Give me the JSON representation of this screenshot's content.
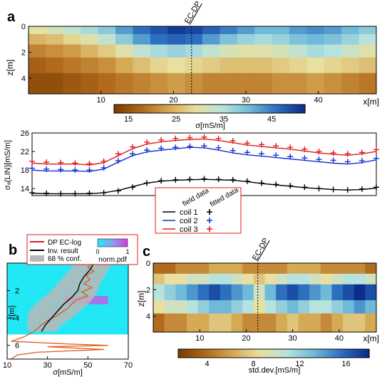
{
  "panels": {
    "a": {
      "label": "a",
      "marker": "EC-DP",
      "xlabel": "x[m]",
      "ylabel": "z[m]",
      "xticks": [
        10,
        20,
        30,
        40
      ],
      "yticks": [
        0,
        2,
        4
      ],
      "colorbar": {
        "ticks": [
          15,
          25,
          35,
          45
        ],
        "label": "σ[mS/m]"
      }
    },
    "b": {
      "label": "b",
      "legend": {
        "dp": "DP EC-log",
        "inv": "Inv. result",
        "conf": "68 % conf.",
        "pdf_label": "norm.pdf",
        "pdf_min": "0",
        "pdf_max": "1"
      },
      "xticks": [
        10,
        30,
        50,
        70
      ],
      "yticks": [
        2,
        4,
        6
      ],
      "xlabel": "σ[mS/m]",
      "ylabel": "z[m]"
    },
    "c": {
      "label": "c",
      "marker": "EC-DP",
      "xlabel": "x[m]",
      "ylabel": "z[m]",
      "xticks": [
        10,
        20,
        30,
        40
      ],
      "yticks": [
        0,
        2,
        4
      ],
      "colorbar": {
        "ticks": [
          4,
          8,
          12,
          16
        ],
        "label": "std.dev.[mS/m]"
      }
    }
  },
  "colors": {
    "cmap": [
      "#7a3f00",
      "#b26a1c",
      "#d6a955",
      "#e8e0a0",
      "#b7e2dd",
      "#6fbad8",
      "#2d6fbf",
      "#0d2d8a"
    ],
    "coil1": "#000000",
    "coil2": "#1530d0",
    "coil3": "#e01b1b",
    "dp_log": "#e05a1a",
    "inv": "#000000",
    "conf": "#b8b8b8",
    "pdf_bg": "#22e8f5",
    "pdf_mid": "#c855e8"
  },
  "chart_data": [
    {
      "type": "heatmap",
      "title": "a",
      "xlim": [
        0,
        48
      ],
      "ylim": [
        5.2,
        0
      ],
      "marker_x": 22.5,
      "value_range": [
        15,
        50
      ],
      "layers": [
        {
          "depth": [
            0,
            0.6
          ],
          "values": [
            30,
            32,
            34,
            36,
            38,
            42,
            45,
            47,
            49,
            48,
            46,
            44,
            42,
            40,
            40,
            42,
            43,
            42,
            40,
            38
          ]
        },
        {
          "depth": [
            0.6,
            1.4
          ],
          "values": [
            26,
            27,
            29,
            31,
            34,
            38,
            42,
            45,
            46,
            45,
            42,
            39,
            37,
            36,
            37,
            39,
            40,
            39,
            37,
            35
          ]
        },
        {
          "depth": [
            1.4,
            2.4
          ],
          "values": [
            22,
            23,
            24,
            26,
            28,
            31,
            34,
            36,
            37,
            36,
            34,
            32,
            31,
            31,
            32,
            34,
            36,
            35,
            33,
            31
          ]
        },
        {
          "depth": [
            2.4,
            3.6
          ],
          "values": [
            19,
            20,
            21,
            22,
            23,
            25,
            27,
            29,
            30,
            29,
            28,
            27,
            27,
            27,
            28,
            29,
            30,
            29,
            28,
            27
          ]
        },
        {
          "depth": [
            3.6,
            5.2
          ],
          "values": [
            17,
            17,
            18,
            19,
            20,
            21,
            22,
            23,
            24,
            23,
            22,
            22,
            22,
            22,
            23,
            23,
            24,
            23,
            22,
            21
          ]
        }
      ]
    },
    {
      "type": "line",
      "xlim": [
        0,
        48
      ],
      "ylim": [
        12.5,
        26
      ],
      "ylabel": "σₐ(LIN)[mS/m]",
      "yticks": [
        14,
        18,
        22,
        26
      ],
      "legend_headers": [
        "field data",
        "fitted data"
      ],
      "x": [
        0,
        2,
        4,
        6,
        8,
        10,
        12,
        14,
        16,
        18,
        20,
        22,
        24,
        26,
        28,
        30,
        32,
        34,
        36,
        38,
        40,
        42,
        44,
        46,
        48
      ],
      "series": [
        {
          "name": "coil 1",
          "field": [
            13.1,
            13.0,
            12.9,
            12.9,
            13.0,
            13.1,
            13.5,
            14.3,
            15.2,
            15.7,
            15.9,
            16.0,
            16.1,
            16.0,
            15.9,
            15.6,
            15.2,
            14.9,
            14.6,
            14.3,
            14.0,
            13.8,
            13.7,
            13.9,
            14.3
          ],
          "fitted": [
            13.0,
            12.9,
            12.9,
            12.9,
            12.9,
            13.1,
            13.6,
            14.4,
            15.2,
            15.6,
            15.8,
            15.9,
            16.0,
            15.9,
            15.8,
            15.5,
            15.1,
            14.8,
            14.5,
            14.2,
            14.0,
            13.8,
            13.7,
            13.8,
            14.1
          ]
        },
        {
          "name": "coil 2",
          "field": [
            18.4,
            18.2,
            18.1,
            18.0,
            18.0,
            18.5,
            20.0,
            21.5,
            22.3,
            22.7,
            22.9,
            23.1,
            23.2,
            22.8,
            22.2,
            21.8,
            21.5,
            21.2,
            20.9,
            20.6,
            20.3,
            20.1,
            19.8,
            20.0,
            20.5
          ],
          "fitted": [
            18.0,
            17.8,
            17.8,
            17.8,
            17.7,
            18.2,
            19.7,
            21.1,
            21.9,
            22.3,
            22.6,
            22.9,
            22.8,
            22.3,
            21.7,
            21.3,
            21.0,
            20.7,
            20.4,
            20.1,
            19.8,
            19.5,
            19.3,
            19.6,
            20.2
          ]
        },
        {
          "name": "coil 3",
          "field": [
            19.9,
            19.7,
            19.6,
            19.5,
            19.4,
            19.9,
            21.5,
            23.0,
            24.0,
            24.5,
            24.8,
            25.0,
            25.1,
            24.8,
            24.3,
            23.8,
            23.5,
            23.2,
            22.9,
            22.5,
            22.0,
            21.7,
            21.5,
            21.8,
            22.4
          ],
          "fitted": [
            19.5,
            19.3,
            19.3,
            19.3,
            19.1,
            19.6,
            21.1,
            22.6,
            23.6,
            24.1,
            24.4,
            24.6,
            24.7,
            24.4,
            23.9,
            23.4,
            23.1,
            22.8,
            22.5,
            22.1,
            21.7,
            21.4,
            21.2,
            21.5,
            22.0
          ]
        }
      ]
    },
    {
      "type": "line",
      "title": "b",
      "xlim": [
        10,
        70
      ],
      "ylim": [
        7.0,
        0
      ],
      "pdf_depth_max": 5.2,
      "inv_result": {
        "z": [
          0,
          0.5,
          1.0,
          1.5,
          2.0,
          2.5,
          3.0,
          3.5,
          4.0,
          4.5,
          5.0
        ],
        "sigma": [
          53,
          51,
          48,
          46,
          45,
          42,
          38,
          35,
          32,
          29,
          27
        ]
      },
      "conf_68": {
        "z": [
          0,
          0.5,
          1.0,
          1.5,
          2.0,
          2.5,
          3.0,
          3.5,
          4.0,
          4.5,
          5.0
        ],
        "lo": [
          44,
          41,
          38,
          35,
          32,
          28,
          24,
          21,
          20,
          20,
          21
        ],
        "hi": [
          62,
          60,
          58,
          56,
          55,
          53,
          50,
          46,
          42,
          37,
          34
        ]
      },
      "dp_log": {
        "z": [
          0,
          0.3,
          0.6,
          0.9,
          1.2,
          1.5,
          1.8,
          2.1,
          2.4,
          2.7,
          3.0,
          3.3,
          3.6,
          3.9,
          4.2,
          4.5,
          4.8,
          5.1,
          5.4,
          5.7,
          5.9,
          6.0,
          6.1,
          6.3,
          6.5,
          6.7,
          7.0
        ],
        "sigma": [
          52,
          50,
          53,
          49,
          51,
          48,
          52,
          47,
          50,
          44,
          42,
          40,
          37,
          34,
          30,
          27,
          25,
          22,
          18,
          12,
          40,
          60,
          30,
          58,
          25,
          15,
          12
        ]
      }
    },
    {
      "type": "heatmap",
      "title": "c",
      "xlim": [
        0,
        48
      ],
      "ylim": [
        5.2,
        0
      ],
      "marker_x": 22.5,
      "value_range": [
        3,
        17
      ],
      "layers": [
        {
          "depth": [
            0,
            0.8
          ],
          "values": [
            5,
            5,
            6,
            6,
            6,
            7,
            7,
            7,
            6,
            6,
            6,
            6,
            7,
            7,
            7,
            6,
            6,
            6,
            6,
            5
          ]
        },
        {
          "depth": [
            0.8,
            1.6
          ],
          "values": [
            8,
            9,
            9,
            10,
            10,
            11,
            11,
            10,
            9,
            8,
            9,
            10,
            11,
            11,
            10,
            9,
            10,
            11,
            11,
            10
          ]
        },
        {
          "depth": [
            1.6,
            2.8
          ],
          "values": [
            11,
            12,
            13,
            14,
            15,
            16,
            15,
            14,
            13,
            10,
            13,
            15,
            16,
            15,
            14,
            13,
            15,
            16,
            17,
            16
          ]
        },
        {
          "depth": [
            2.8,
            3.8
          ],
          "values": [
            9,
            10,
            10,
            11,
            12,
            13,
            13,
            12,
            11,
            9,
            11,
            12,
            13,
            12,
            11,
            11,
            12,
            13,
            14,
            13
          ]
        },
        {
          "depth": [
            3.8,
            5.2
          ],
          "values": [
            5,
            6,
            6,
            7,
            7,
            8,
            8,
            7,
            6,
            6,
            6,
            7,
            8,
            7,
            7,
            6,
            7,
            8,
            8,
            7
          ]
        }
      ]
    }
  ]
}
